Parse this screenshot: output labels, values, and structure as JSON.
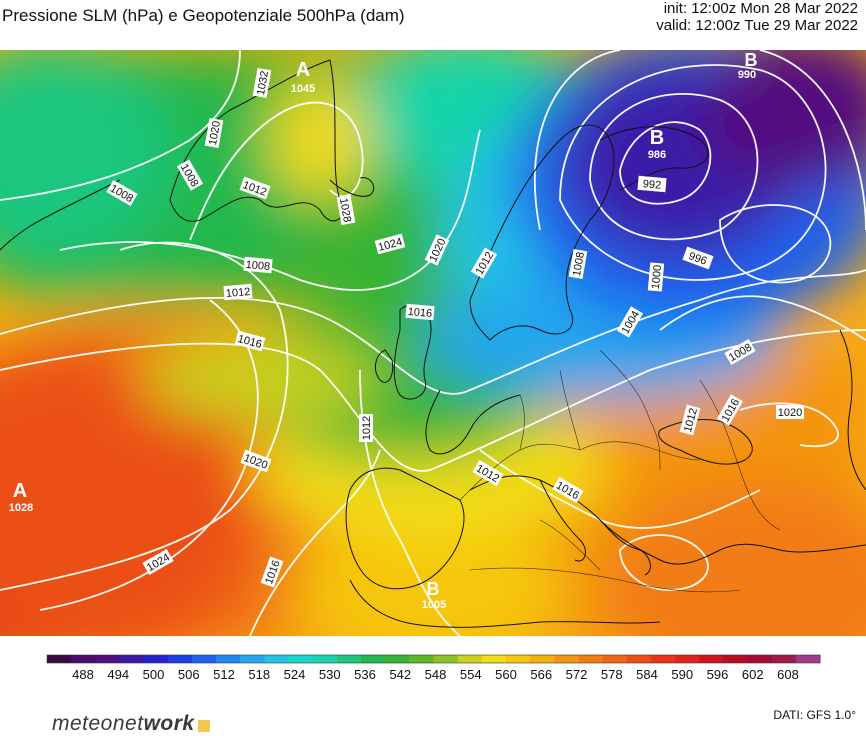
{
  "header": {
    "title": "Pressione SLM (hPa) e Geopotenziale 500hPa (dam)",
    "init": "init: 12:00z Mon 28 Mar 2022",
    "valid": "valid: 12:00z Tue 29 Mar 2022"
  },
  "colors": {
    "isobar": "#ffffff",
    "coast": "#111111",
    "legend_scale": [
      "#3b0a45",
      "#4b0c6b",
      "#52107f",
      "#3a1aa8",
      "#2424cf",
      "#1f3ee6",
      "#1d62ee",
      "#1f86f0",
      "#24a6ee",
      "#22c4e6",
      "#1bd6cc",
      "#18d4a8",
      "#1cc67e",
      "#22b84e",
      "#36b436",
      "#5cb82a",
      "#8cc226",
      "#c8d21e",
      "#f2dc14",
      "#f6c60c",
      "#f6ae0e",
      "#f49410",
      "#f27c12",
      "#f06414",
      "#ee4c16",
      "#ea3418",
      "#e2201c",
      "#d0121e",
      "#b80c26",
      "#a40a34",
      "#a0184c",
      "#a43a8a"
    ]
  },
  "legend": {
    "ticks": [
      "488",
      "494",
      "500",
      "506",
      "512",
      "518",
      "524",
      "530",
      "536",
      "542",
      "548",
      "554",
      "560",
      "566",
      "572",
      "578",
      "584",
      "590",
      "596",
      "602",
      "608"
    ]
  },
  "map": {
    "pressure_centers": [
      {
        "letter": "A",
        "value": "1045"
      },
      {
        "letter": "B",
        "value": "986"
      },
      {
        "letter": "B",
        "value": "990"
      },
      {
        "letter": "A",
        "value": "1028"
      },
      {
        "letter": "B",
        "value": "1005"
      }
    ],
    "isobar_labels": [
      "1032",
      "1020",
      "1008",
      "1008",
      "1012",
      "1028",
      "1024",
      "1020",
      "1008",
      "1012",
      "1016",
      "1016",
      "1012",
      "1020",
      "1024",
      "1016",
      "1016",
      "1012",
      "1012",
      "992",
      "996",
      "1000",
      "1004",
      "1008",
      "1008",
      "1012",
      "1016",
      "1020"
    ]
  },
  "footer": {
    "brand_main": "meteonet",
    "brand_bold": "work",
    "source": "DATI: GFS 1.0°"
  }
}
